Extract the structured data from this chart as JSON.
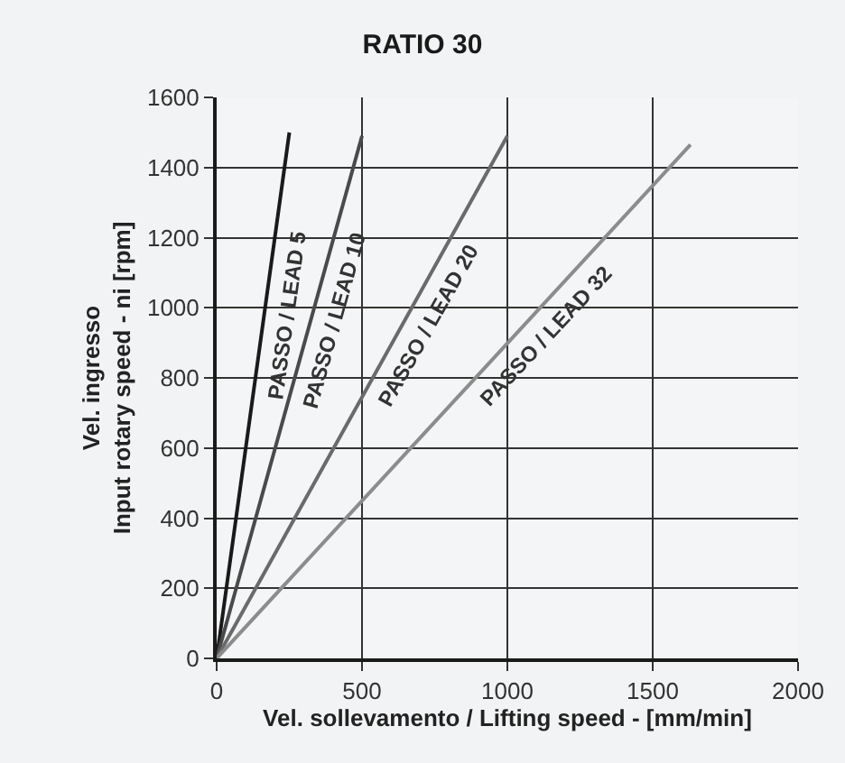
{
  "chart_data": {
    "type": "line",
    "title": "RATIO 30",
    "xlabel": "Vel. sollevamento / Lifting speed - [mm/min]",
    "ylabel": "Vel. ingresso\nInput rotary speed - ni [rpm]",
    "series": [
      {
        "name": "PASSO / LEAD 5",
        "color": "#1a1a1a",
        "x": [
          0,
          250
        ],
        "values": [
          0,
          1500
        ]
      },
      {
        "name": "PASSO / LEAD 10",
        "color": "#4a4a4a",
        "x": [
          0,
          500
        ],
        "values": [
          0,
          1490
        ]
      },
      {
        "name": "PASSO / LEAD 20",
        "color": "#6a6a6a",
        "x": [
          0,
          1000
        ],
        "values": [
          0,
          1490
        ]
      },
      {
        "name": "PASSO / LEAD 32",
        "color": "#8c8c8c",
        "x": [
          0,
          1630
        ],
        "values": [
          0,
          1465
        ]
      }
    ],
    "xlim": [
      0,
      2000
    ],
    "xticks": [
      0,
      500,
      1000,
      1500,
      2000
    ],
    "ylim": [
      0,
      1600
    ],
    "yticks": [
      0,
      200,
      400,
      600,
      800,
      1000,
      1200,
      1400,
      1600
    ],
    "grid": true,
    "legend": false,
    "marker": "none",
    "line_style": "solid"
  }
}
